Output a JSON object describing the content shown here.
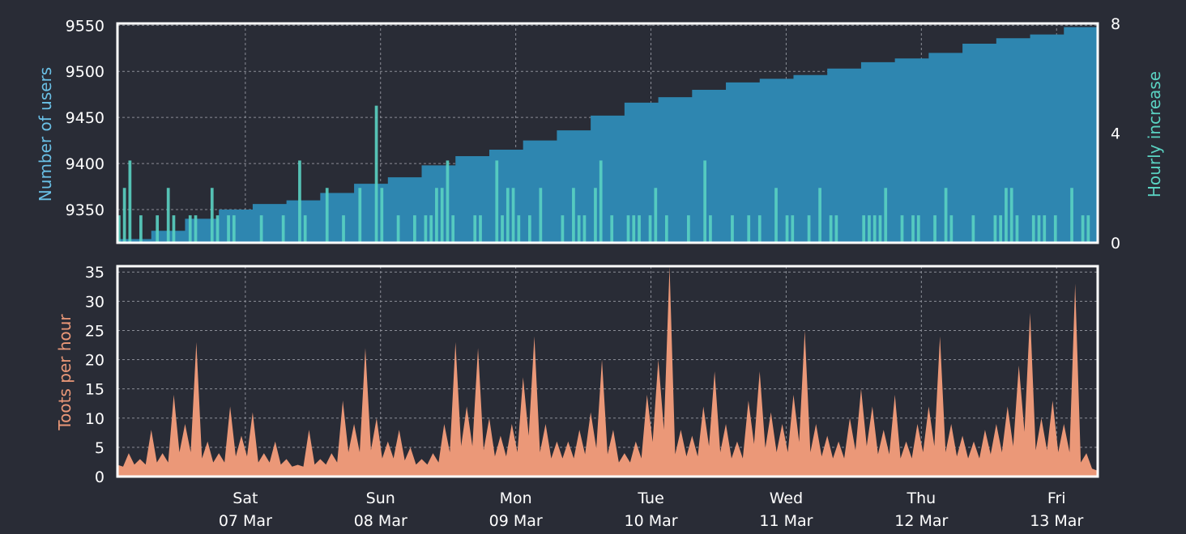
{
  "colors": {
    "background": "#292c36",
    "users_fill": "#2e86b0",
    "users_label": "#6ac0e6",
    "hourly_bars": "#5ad2c2",
    "hourly_label": "#5ad2c2",
    "toots_fill": "#eb9878",
    "toots_label": "#eb9878",
    "axis_text": "#ffffff",
    "frame": "#ffffff",
    "grid": "#8a8d96"
  },
  "x_axis": {
    "start": "06 Mar",
    "end": "13 Mar",
    "ticks": [
      {
        "day": "Sat",
        "date": "07 Mar",
        "hour": 22.7
      },
      {
        "day": "Sun",
        "date": "08 Mar",
        "hour": 46.7
      },
      {
        "day": "Mon",
        "date": "09 Mar",
        "hour": 70.7
      },
      {
        "day": "Tue",
        "date": "10 Mar",
        "hour": 94.7
      },
      {
        "day": "Wed",
        "date": "11 Mar",
        "hour": 118.7
      },
      {
        "day": "Thu",
        "date": "12 Mar",
        "hour": 142.7
      },
      {
        "day": "Fri",
        "date": "13 Mar",
        "hour": 166.7
      }
    ]
  },
  "chart_data": [
    {
      "type": "area",
      "id": "users",
      "ylabel": "Number of users",
      "ylim": [
        9314,
        9552
      ],
      "yticks": [
        9350,
        9400,
        9450,
        9500,
        9550
      ],
      "grid": true,
      "series": [
        {
          "name": "Number of users",
          "x_unit": "hours",
          "points": [
            [
              0,
              9318
            ],
            [
              6,
              9327
            ],
            [
              12,
              9340
            ],
            [
              18,
              9350
            ],
            [
              24,
              9356
            ],
            [
              30,
              9360
            ],
            [
              36,
              9368
            ],
            [
              42,
              9378
            ],
            [
              48,
              9385
            ],
            [
              54,
              9398
            ],
            [
              60,
              9408
            ],
            [
              66,
              9415
            ],
            [
              72,
              9425
            ],
            [
              78,
              9436
            ],
            [
              84,
              9452
            ],
            [
              90,
              9466
            ],
            [
              96,
              9472
            ],
            [
              102,
              9480
            ],
            [
              108,
              9488
            ],
            [
              114,
              9492
            ],
            [
              120,
              9496
            ],
            [
              126,
              9503
            ],
            [
              132,
              9510
            ],
            [
              138,
              9514
            ],
            [
              144,
              9520
            ],
            [
              150,
              9530
            ],
            [
              156,
              9536
            ],
            [
              162,
              9540
            ],
            [
              168,
              9548
            ],
            [
              174,
              9551
            ]
          ]
        }
      ],
      "secondary": {
        "ylabel": "Hourly increase",
        "ylim": [
          0,
          8
        ],
        "yticks": [
          0,
          4,
          8
        ],
        "name": "Hourly increase",
        "values": [
          1,
          2,
          3,
          0,
          1,
          0,
          0,
          1,
          0,
          2,
          1,
          0,
          0,
          1,
          1,
          0,
          0,
          2,
          1,
          0,
          1,
          1,
          0,
          0,
          0,
          0,
          1,
          0,
          0,
          0,
          1,
          0,
          0,
          3,
          1,
          0,
          0,
          0,
          2,
          0,
          0,
          1,
          0,
          0,
          2,
          0,
          0,
          5,
          2,
          0,
          0,
          1,
          0,
          0,
          1,
          0,
          1,
          1,
          2,
          2,
          3,
          1,
          0,
          0,
          0,
          1,
          1,
          0,
          0,
          3,
          1,
          2,
          2,
          1,
          0,
          1,
          0,
          2,
          0,
          0,
          0,
          1,
          0,
          2,
          1,
          1,
          0,
          2,
          3,
          0,
          1,
          0,
          0,
          1,
          1,
          1,
          0,
          1,
          2,
          0,
          1,
          0,
          0,
          0,
          1,
          0,
          0,
          3,
          1,
          0,
          0,
          0,
          1,
          0,
          0,
          1,
          0,
          1,
          0,
          0,
          2,
          0,
          1,
          1,
          0,
          0,
          1,
          0,
          2,
          0,
          1,
          1,
          0,
          0,
          0,
          0,
          1,
          1,
          1,
          1,
          2,
          0,
          0,
          1,
          0,
          1,
          1,
          0,
          0,
          1,
          0,
          2,
          1,
          0,
          0,
          0,
          1,
          0,
          0,
          0,
          1,
          1,
          2,
          2,
          1,
          0,
          0,
          1,
          1,
          1,
          0,
          1,
          0,
          0,
          2,
          0,
          1,
          1,
          0
        ]
      }
    },
    {
      "type": "area",
      "id": "toots",
      "ylabel": "Toots per hour",
      "ylim": [
        0,
        36
      ],
      "yticks": [
        0,
        5,
        10,
        15,
        20,
        25,
        30,
        35
      ],
      "grid": true,
      "series": [
        {
          "name": "Toots per hour",
          "x_unit": "hours",
          "points": [
            [
              0,
              2
            ],
            [
              2,
              4
            ],
            [
              4,
              3
            ],
            [
              6,
              8
            ],
            [
              8,
              4
            ],
            [
              10,
              14
            ],
            [
              12,
              9
            ],
            [
              14,
              23
            ],
            [
              16,
              6
            ],
            [
              18,
              4
            ],
            [
              20,
              12
            ],
            [
              22,
              7
            ],
            [
              24,
              11
            ],
            [
              26,
              4
            ],
            [
              28,
              6
            ],
            [
              30,
              3
            ],
            [
              32,
              2
            ],
            [
              34,
              8
            ],
            [
              36,
              3
            ],
            [
              38,
              4
            ],
            [
              40,
              13
            ],
            [
              42,
              9
            ],
            [
              44,
              22
            ],
            [
              46,
              10
            ],
            [
              48,
              6
            ],
            [
              50,
              8
            ],
            [
              52,
              5
            ],
            [
              54,
              3
            ],
            [
              56,
              4
            ],
            [
              58,
              9
            ],
            [
              60,
              23
            ],
            [
              62,
              12
            ],
            [
              64,
              22
            ],
            [
              66,
              10
            ],
            [
              68,
              7
            ],
            [
              70,
              9
            ],
            [
              72,
              17
            ],
            [
              74,
              24
            ],
            [
              76,
              9
            ],
            [
              78,
              6
            ],
            [
              80,
              6
            ],
            [
              82,
              8
            ],
            [
              84,
              11
            ],
            [
              86,
              20
            ],
            [
              88,
              8
            ],
            [
              90,
              4
            ],
            [
              92,
              6
            ],
            [
              94,
              14
            ],
            [
              96,
              20
            ],
            [
              98,
              36
            ],
            [
              100,
              8
            ],
            [
              102,
              7
            ],
            [
              104,
              12
            ],
            [
              106,
              18
            ],
            [
              108,
              9
            ],
            [
              110,
              6
            ],
            [
              112,
              13
            ],
            [
              114,
              18
            ],
            [
              116,
              11
            ],
            [
              118,
              9
            ],
            [
              120,
              14
            ],
            [
              122,
              25
            ],
            [
              124,
              9
            ],
            [
              126,
              7
            ],
            [
              128,
              6
            ],
            [
              130,
              10
            ],
            [
              132,
              15
            ],
            [
              134,
              12
            ],
            [
              136,
              8
            ],
            [
              138,
              14
            ],
            [
              140,
              6
            ],
            [
              142,
              9
            ],
            [
              144,
              12
            ],
            [
              146,
              24
            ],
            [
              148,
              9
            ],
            [
              150,
              7
            ],
            [
              152,
              6
            ],
            [
              154,
              8
            ],
            [
              156,
              9
            ],
            [
              158,
              12
            ],
            [
              160,
              19
            ],
            [
              162,
              28
            ],
            [
              164,
              10
            ],
            [
              166,
              13
            ],
            [
              168,
              9
            ],
            [
              170,
              33
            ],
            [
              172,
              4
            ],
            [
              174,
              1
            ]
          ]
        }
      ]
    }
  ]
}
